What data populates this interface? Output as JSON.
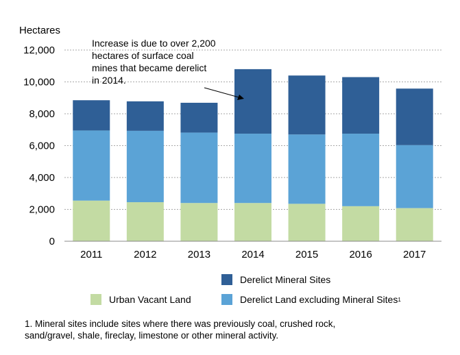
{
  "chart_data": {
    "type": "bar",
    "stacked": true,
    "ylabel": "Hectares",
    "ylim": [
      0,
      12000
    ],
    "yticks": [
      0,
      2000,
      4000,
      6000,
      8000,
      10000,
      12000
    ],
    "ytick_labels": [
      "0",
      "2,000",
      "4,000",
      "6,000",
      "8,000",
      "10,000",
      "12,000"
    ],
    "grid": true,
    "categories": [
      "2011",
      "2012",
      "2013",
      "2014",
      "2015",
      "2016",
      "2017"
    ],
    "series": [
      {
        "name": "Urban Vacant Land",
        "color": "#c3dba3",
        "values": [
          2550,
          2450,
          2400,
          2400,
          2350,
          2200,
          2080
        ]
      },
      {
        "name": "Derelict Land excluding Mineral Sites",
        "footnote_mark": "1",
        "color": "#5ba3d6",
        "values": [
          4400,
          4480,
          4420,
          4350,
          4350,
          4550,
          3950
        ]
      },
      {
        "name": "Derelict Mineral Sites",
        "color": "#2f5f96",
        "values": [
          1900,
          1850,
          1870,
          4050,
          3700,
          3550,
          3550
        ]
      }
    ],
    "annotation": {
      "lines": [
        "Increase is due to over 2,200",
        "hectares of surface coal",
        "mines that became derelict",
        "in 2014."
      ],
      "points_to": "2014"
    },
    "legend_placement": "bottom-right"
  },
  "footnote": {
    "line1": "1. Mineral sites include sites where there was previously coal, crushed rock,",
    "line2": "sand/gravel, shale, fireclay, limestone or other mineral activity."
  }
}
